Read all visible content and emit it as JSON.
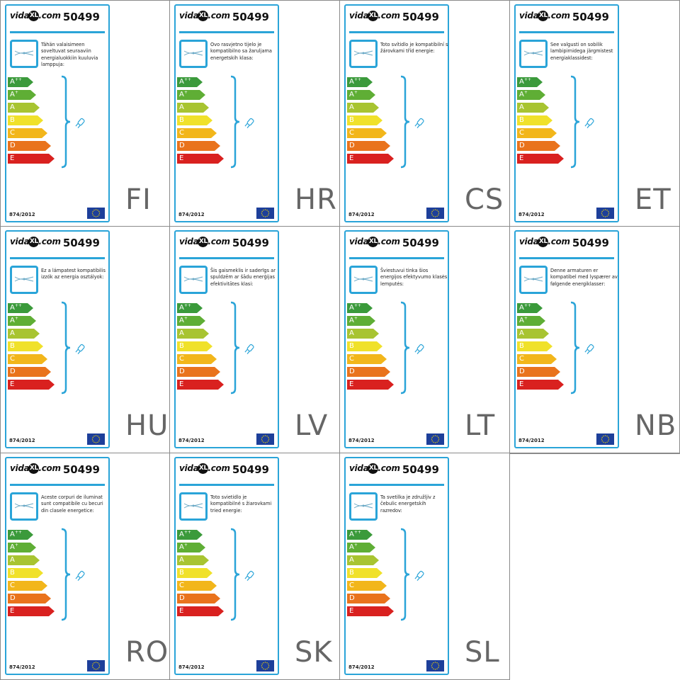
{
  "brand": {
    "logo_text_left": "vida",
    "logo_text_mark": "XL",
    "logo_text_right": ".com"
  },
  "model_number": "50499",
  "regulation": "874/2012",
  "icons": {
    "fixture": "light-fixture-icon",
    "bulb": "bulb-icon",
    "flag": "eu-flag-icon",
    "brace": "brace-icon"
  },
  "energy_classes": [
    {
      "label": "A",
      "sup": "++",
      "color": "#3b9a3b"
    },
    {
      "label": "A",
      "sup": "+",
      "color": "#5fae35"
    },
    {
      "label": "A",
      "sup": "",
      "color": "#a8c431"
    },
    {
      "label": "B",
      "sup": "",
      "color": "#f0e12a"
    },
    {
      "label": "C",
      "sup": "",
      "color": "#f2b61b"
    },
    {
      "label": "D",
      "sup": "",
      "color": "#e9731c"
    },
    {
      "label": "E",
      "sup": "",
      "color": "#d9211f"
    }
  ],
  "accent_color": "#2aa4d8",
  "labels": [
    {
      "lang": "FI",
      "text": "Tähän valaisimeen soveltuvat seuraaviin energialuokkiin kuuluvia lamppuja:"
    },
    {
      "lang": "HR",
      "text": "Ovo rasvjetno tijelo je kompatibilno sa žaruljama energetskih klasa:"
    },
    {
      "lang": "CS",
      "text": "Toto svítidlo je kompatibilní s žárovkami tříd energie:"
    },
    {
      "lang": "ET",
      "text": "See valgusti on sobilik lambipirnidega järgmistest energiaklassidest:"
    },
    {
      "lang": "HU",
      "text": "Ez a lámpatest kompatibilis izzók az energia osztályok:"
    },
    {
      "lang": "LV",
      "text": "Šis gaismeklis ir saderīgs ar spuldzēm ar šādu enerģijas efektivitātes klasi:"
    },
    {
      "lang": "LT",
      "text": "Šviestuvui tinka šios energijos efektyvumo klasės lemputės:"
    },
    {
      "lang": "NB",
      "text": "Denne armaturen er kompatibel med lyspærer av følgende energiklasser:"
    },
    {
      "lang": "RO",
      "text": "Aceste corpuri de iluminat sunt compatibile cu becuri din clasele energetice:"
    },
    {
      "lang": "SK",
      "text": "Toto svietidlo je kompatibilné s žiarovkami tried energie:"
    },
    {
      "lang": "SL",
      "text": "Ta svetilka je združljiv z čebulic energetskih razredov:"
    }
  ]
}
